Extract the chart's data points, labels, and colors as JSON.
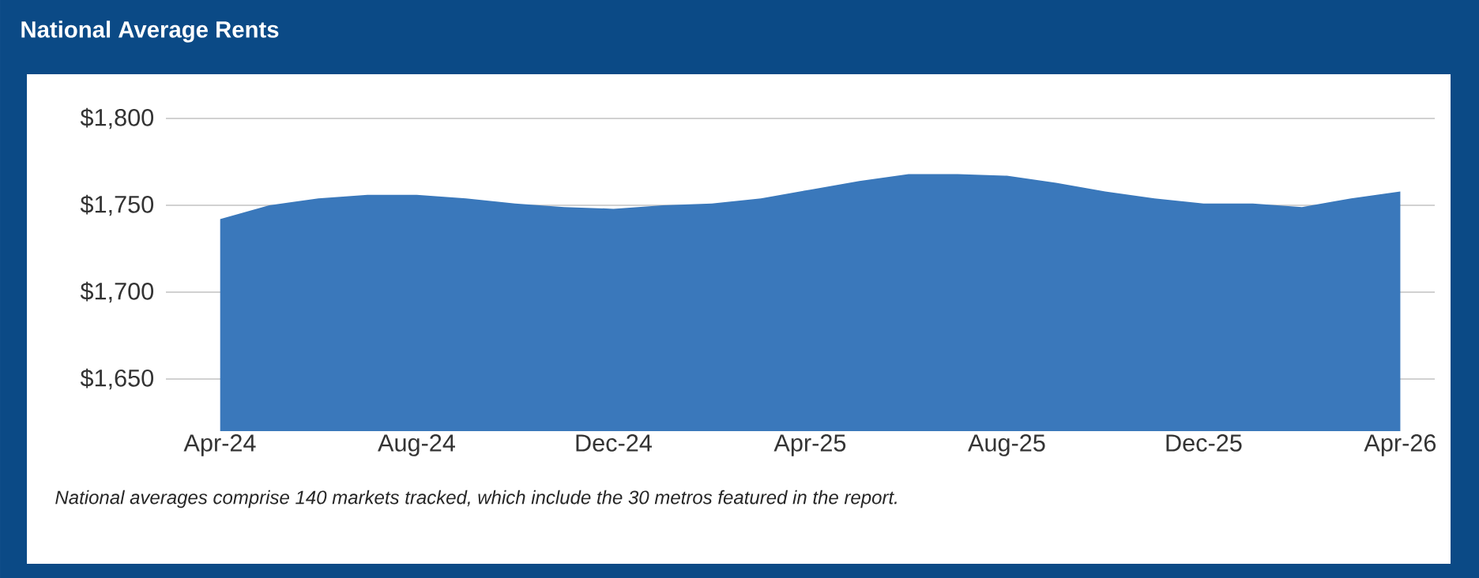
{
  "chart_data": {
    "type": "area",
    "title": "National Average Rents",
    "categories": [
      "Apr-24",
      null,
      null,
      null,
      "Aug-24",
      null,
      null,
      null,
      "Dec-24",
      null,
      null,
      null,
      "Apr-25",
      null,
      null,
      null,
      "Aug-25",
      null,
      null,
      null,
      "Dec-25",
      null,
      null,
      null,
      "Apr-26"
    ],
    "values": [
      1742,
      1750,
      1754,
      1756,
      1756,
      1754,
      1751,
      1749,
      1748,
      1750,
      1751,
      1754,
      1759,
      1764,
      1768,
      1768,
      1767,
      1763,
      1758,
      1754,
      1751,
      1751,
      1749,
      1754,
      1758
    ],
    "color": "#3a78bb",
    "ylim": [
      1620,
      1800
    ],
    "yticks": [
      {
        "value": 1650,
        "label": "$1,650"
      },
      {
        "value": 1700,
        "label": "$1,700"
      },
      {
        "value": 1750,
        "label": "$1,750"
      },
      {
        "value": 1800,
        "label": "$1,800"
      }
    ],
    "grid": "y",
    "annotations": [
      "National averages comprise 140 markets tracked, which include the 30 metros featured in the report."
    ]
  }
}
